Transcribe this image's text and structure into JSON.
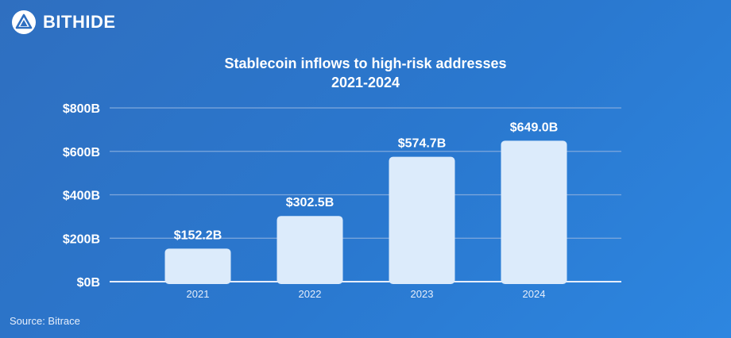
{
  "brand": {
    "name": "BITHIDE",
    "logo_icon": "bithide-logo-icon"
  },
  "source": "Source: Bitrace",
  "colors": {
    "bar": "#dcebfb",
    "grid": "#7fa8dc",
    "axis": "#e6eefb",
    "text": "#ffffff"
  },
  "chart_data": {
    "type": "bar",
    "title": [
      "Stablecoin inflows to high-risk addresses",
      "2021-2024"
    ],
    "categories": [
      "2021",
      "2022",
      "2023",
      "2024"
    ],
    "values": [
      152.2,
      302.5,
      574.7,
      649.0
    ],
    "value_labels": [
      "$152.2B",
      "$302.5B",
      "$574.7B",
      "$649.0B"
    ],
    "y_ticks": [
      0,
      200,
      400,
      600,
      800
    ],
    "y_tick_labels": [
      "$0B",
      "$200B",
      "$400B",
      "$600B",
      "$800B"
    ],
    "ylim": [
      0,
      800
    ],
    "grid": true
  }
}
